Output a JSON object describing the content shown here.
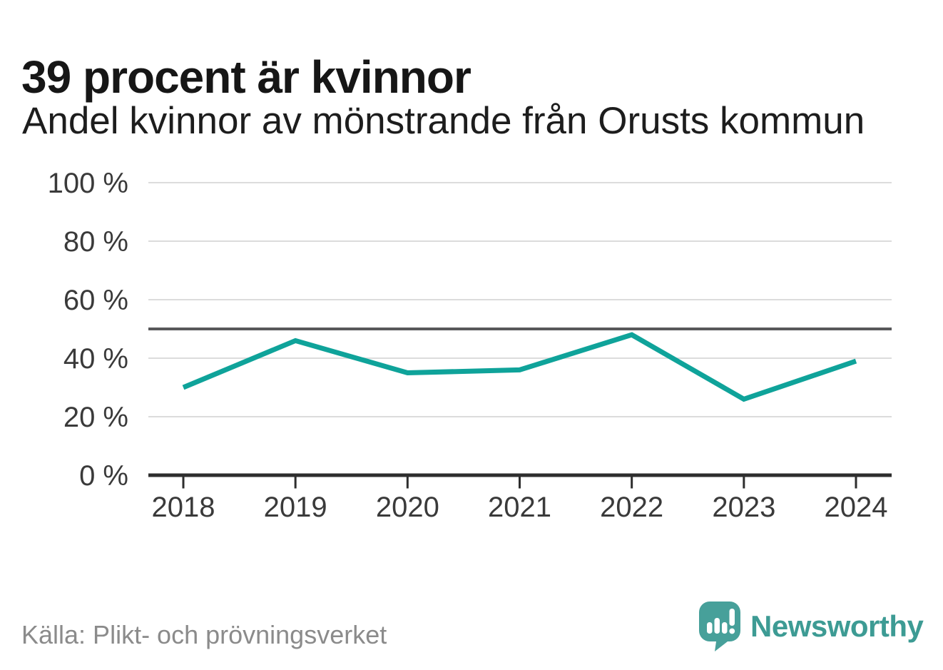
{
  "title": "39 procent är kvinnor",
  "subtitle": "Andel kvinnor av mönstrande från Orusts kommun",
  "source": "Källa: Plikt- och prövningsverket",
  "brand": {
    "name": "Newsworthy",
    "icon": "newsworthy-speech-bubble-barchart-icon",
    "color": "#3d9b94",
    "icon_color": "#47a09a"
  },
  "colors": {
    "background": "#ffffff",
    "line": "#0fa39a",
    "grid": "#dcdcdc",
    "axis": "#2e2e2e",
    "reference_line": "#58585a",
    "tick_label": "#3a3a3a",
    "title_text": "#161616",
    "subtitle_text": "#1d1d1d",
    "source_text": "#8b8b8b"
  },
  "chart_data": {
    "type": "line",
    "title": "39 procent är kvinnor",
    "subtitle": "Andel kvinnor av mönstrande från Orusts kommun",
    "x": [
      2018,
      2019,
      2020,
      2021,
      2022,
      2023,
      2024
    ],
    "x_tick_labels": [
      "2018",
      "2019",
      "2020",
      "2021",
      "2022",
      "2023",
      "2024"
    ],
    "series": [
      {
        "name": "Andel kvinnor av mönstrande",
        "unit": "%",
        "values": [
          30,
          46,
          35,
          36,
          48,
          26,
          39
        ]
      }
    ],
    "ylim": [
      0,
      100
    ],
    "y_ticks": [
      0,
      20,
      40,
      60,
      80,
      100
    ],
    "y_tick_labels": [
      "0 %",
      "20 %",
      "40 %",
      "60 %",
      "80 %",
      "100 %"
    ],
    "reference_line_y": 50,
    "grid": "horizontal",
    "legend_position": "none",
    "xlabel": "",
    "ylabel": ""
  }
}
